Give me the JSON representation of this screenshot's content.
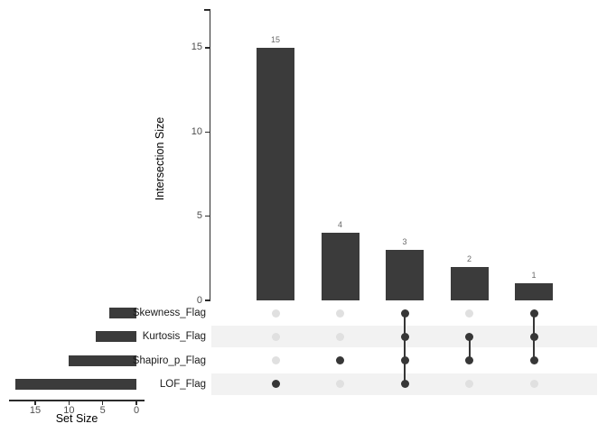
{
  "chart_data": {
    "type": "upset",
    "title": "",
    "intersection_axis": {
      "label": "Intersection Size",
      "tick_values": [
        0,
        5,
        10,
        15
      ],
      "tick_labels": [
        "0",
        "5",
        "10",
        "15"
      ],
      "range": [
        0,
        17.3
      ],
      "grid": false
    },
    "set_axis": {
      "label": "Set Size",
      "tick_values": [
        15,
        10,
        5,
        0
      ],
      "tick_labels": [
        "15",
        "10",
        "5",
        "0"
      ],
      "range": [
        19,
        0
      ],
      "grid": false
    },
    "sets": [
      {
        "name": "Skewness_Flag",
        "size": 4
      },
      {
        "name": "Kurtosis_Flag",
        "size": 6
      },
      {
        "name": "Shapiro_p_Flag",
        "size": 10
      },
      {
        "name": "LOF_Flag",
        "size": 18
      }
    ],
    "intersections": [
      {
        "size": 15,
        "label": "15",
        "members": [
          "LOF_Flag"
        ]
      },
      {
        "size": 4,
        "label": "4",
        "members": [
          "Shapiro_p_Flag"
        ]
      },
      {
        "size": 3,
        "label": "3",
        "members": [
          "Skewness_Flag",
          "Kurtosis_Flag",
          "Shapiro_p_Flag",
          "LOF_Flag"
        ]
      },
      {
        "size": 2,
        "label": "2",
        "members": [
          "Kurtosis_Flag",
          "Shapiro_p_Flag"
        ]
      },
      {
        "size": 1,
        "label": "1",
        "members": [
          "Skewness_Flag",
          "Kurtosis_Flag",
          "Shapiro_p_Flag"
        ]
      }
    ],
    "colors": {
      "bar": "#3b3b3b",
      "active_dot": "#373737",
      "inactive_dot": "#e0e0e0",
      "stripe": "#f2f2f2",
      "axis": "#2b2b2b",
      "tick_label": "#4d4d4d",
      "value_label": "#6a6a6a",
      "set_label": "#1a1a1a",
      "background": "#ffffff"
    }
  }
}
